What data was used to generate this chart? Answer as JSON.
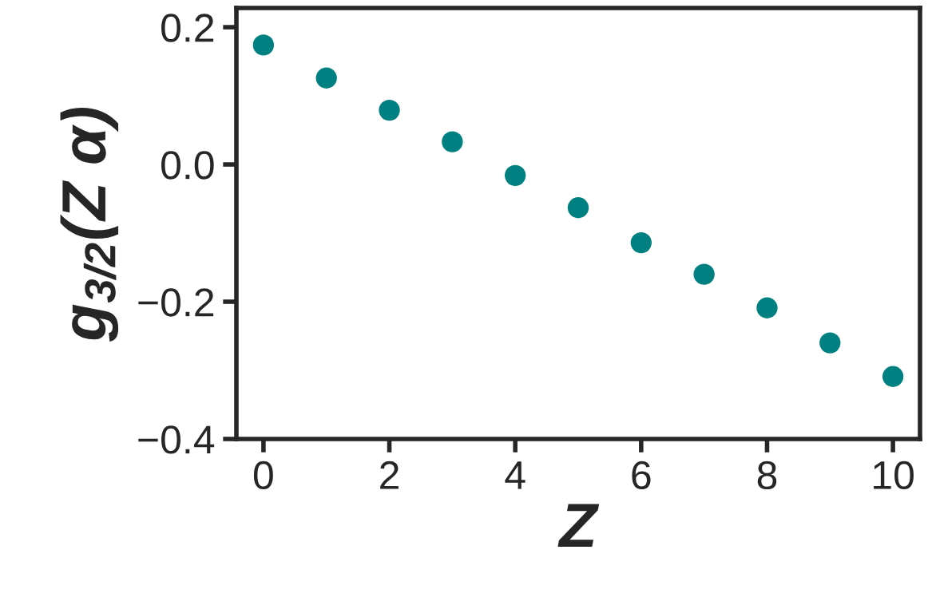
{
  "chart_data": {
    "type": "scatter",
    "xlabel": "Z",
    "ylabel": "g$_{3/2}$(Z α)",
    "x": [
      0,
      1,
      2,
      3,
      4,
      5,
      6,
      7,
      8,
      9,
      10
    ],
    "series": [
      {
        "color": "#008080",
        "values": [
          0.174,
          0.126,
          0.079,
          0.033,
          -0.016,
          -0.063,
          -0.114,
          -0.16,
          -0.209,
          -0.26,
          -0.309
        ]
      }
    ],
    "xlim": [
      -0.43,
      10.43
    ],
    "xticks": [
      0,
      2,
      4,
      6,
      8,
      10
    ],
    "ylim": [
      -0.4,
      0.228
    ],
    "yticks": [
      {
        "value": -0.4,
        "label": "−0.4"
      },
      {
        "value": -0.2,
        "label": "−0.2"
      },
      {
        "value": 0.0,
        "label": "0.0"
      },
      {
        "value": 0.2,
        "label": "0.2"
      }
    ],
    "marker": "circle",
    "grid": false,
    "legend": false
  }
}
